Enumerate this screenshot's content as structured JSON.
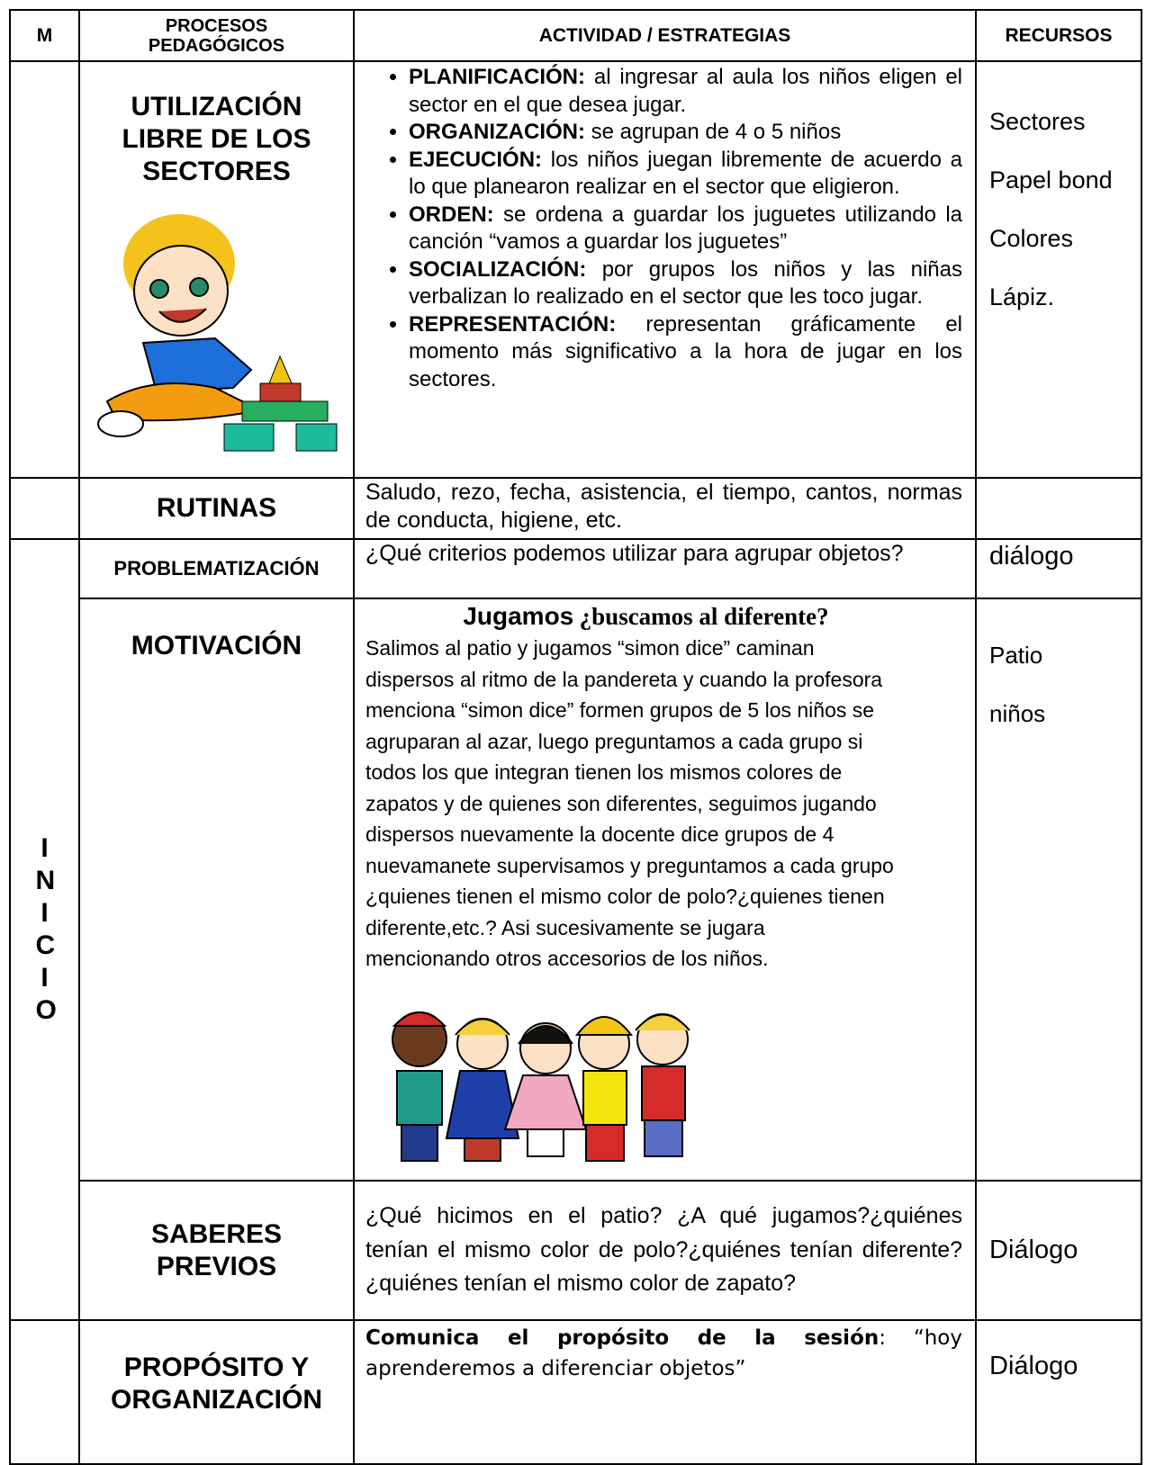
{
  "header": [
    "M",
    "PROCESOS PEDAGÓGICOS",
    "ACTIVIDAD / ESTRATEGIAS",
    "RECURSOS"
  ],
  "inicio_label": "I N I C I O",
  "rows": [
    {
      "process": "UTILIZACIÓN LIBRE DE LOS SECTORES",
      "bullets": [
        {
          "term": "PLANIFICACIÓN:",
          "text": "al ingresar al aula los niños eligen el sector en el que desea jugar."
        },
        {
          "term": "ORGANIZACIÓN:",
          "text": "se agrupan de 4 o 5 niños"
        },
        {
          "term": "EJECUCIÓN:",
          "text": "los niños juegan libremente de acuerdo a lo que planearon realizar en el sector que eligieron."
        },
        {
          "term": "ORDEN:",
          "text": "se ordena a guardar los juguetes utilizando la canción “vamos a guardar los juguetes”"
        },
        {
          "term": "SOCIALIZACIÓN:",
          "text": "por grupos los niños y las niñas verbalizan lo realizado en el sector que les toco jugar."
        },
        {
          "term": "REPRESENTACIÓN:",
          "text": "representan gráficamente el momento más significativo a la hora de jugar en los sectores."
        }
      ],
      "resources": [
        "Sectores",
        "Papel bond",
        "Colores",
        "Lápiz."
      ]
    },
    {
      "process": "RUTINAS",
      "text": "Saludo, rezo, fecha, asistencia, el tiempo, cantos, normas de conducta, higiene, etc."
    },
    {
      "process": "PROBLEMATIZACIÓN",
      "text": "¿Qué criterios podemos utilizar para agrupar objetos?",
      "resources": [
        "diálogo"
      ]
    },
    {
      "process": "MOTIVACIÓN",
      "heading": [
        "Jugamos",
        "¿buscamos al diferente?"
      ],
      "lines": [
        "Salimos  al patio  y jugamos “simon dice” caminan",
        "dispersos al ritmo de la pandereta y  cuando la profesora",
        "menciona “simon dice” formen grupos de 5 los niños se",
        "agruparan al azar, luego preguntamos a cada grupo si",
        "todos los que integran tienen los mismos colores de",
        "zapatos  y de quienes son diferentes, seguimos jugando",
        "dispersos nuevamente la docente dice grupos de 4",
        "nuevamanete supervisamos y preguntamos a cada grupo",
        "¿quienes tienen el mismo color de polo?¿quienes tienen",
        "diferente,etc.? Asi sucesivamente se jugara",
        "mencionando otros accesorios de los niños."
      ],
      "resources": [
        "Patio",
        "niños"
      ]
    },
    {
      "process": "SABERES PREVIOS",
      "text": "¿Qué hicimos en el patio? ¿A qué jugamos?¿quiénes tenían el mismo color de polo?¿quiénes tenían diferente?¿quiénes tenían el mismo color de zapato?",
      "resources": [
        "Diálogo"
      ]
    },
    {
      "process": "PROPÓSITO Y ORGANIZACIÓN",
      "lead": "Comunica el propósito de la sesión",
      "text": ": “hoy aprenderemos a diferenciar objetos”",
      "resources": [
        "Diálogo"
      ]
    }
  ]
}
